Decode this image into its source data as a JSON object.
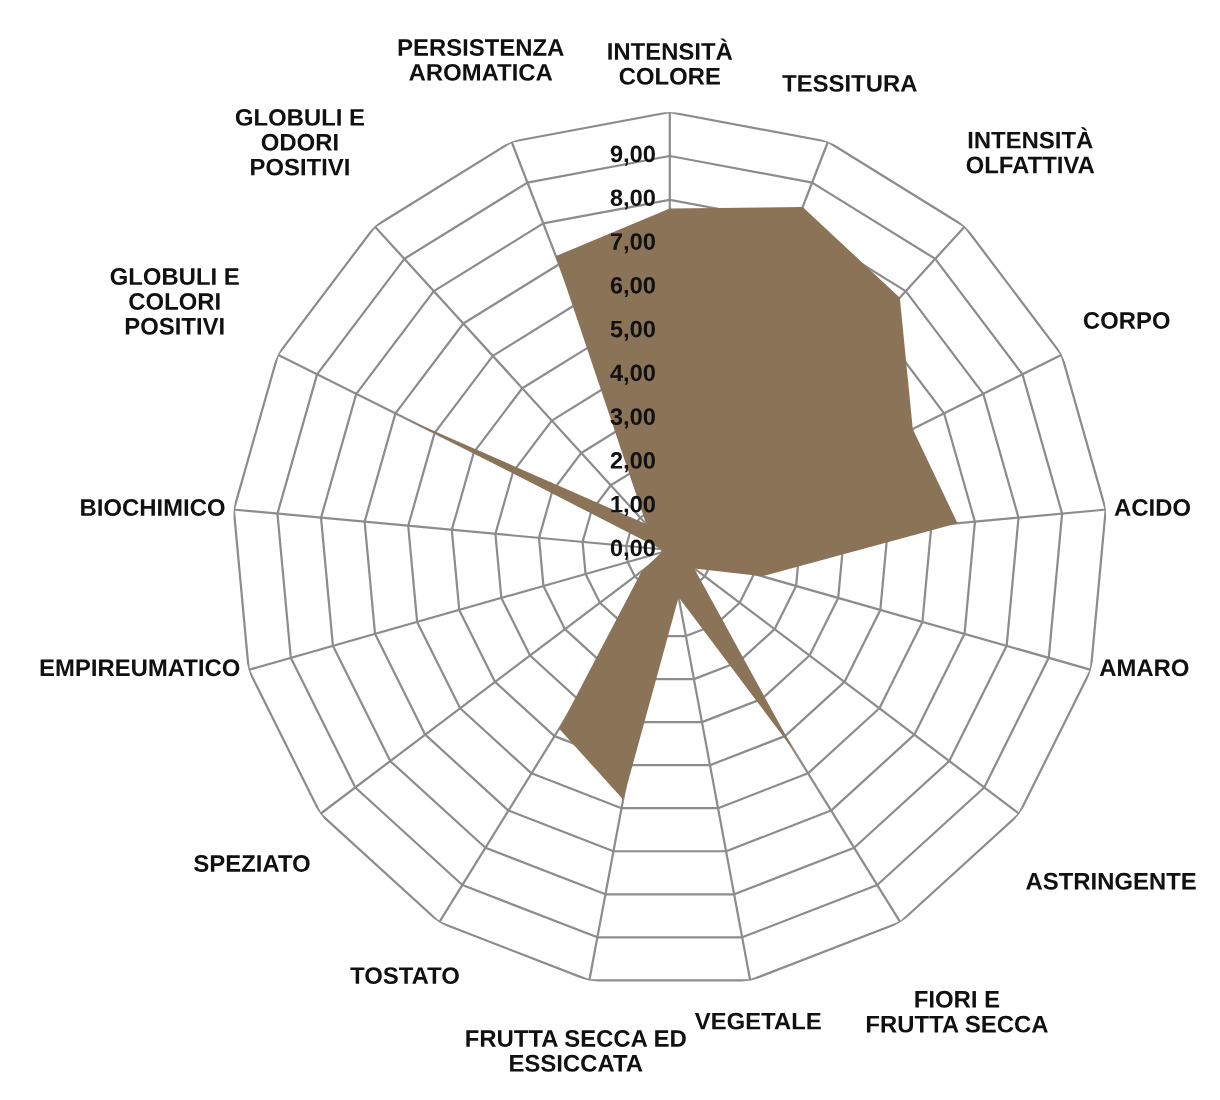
{
  "chart_data": {
    "type": "radar",
    "categories": [
      "INTENSITÀ\nCOLORE",
      "TESSITURA",
      "INTENSITÀ\nOLFATTIVA",
      "CORPO",
      "ACIDO",
      "AMARO",
      "ASTRINGENTE",
      "FIORI E\nFRUTTA SECCA",
      "VEGETALE",
      "FRUTTA SECCA ED\nESSICCATA",
      "TOSTATO",
      "SPEZIATO",
      "EMPIREUMATICO",
      "BIOCHIMICO",
      "GLOBULI E\nCOLORI\nPOSITIVI",
      "GLOBULI E\nODORI\nPOSITIVI",
      "PERSISTENZA\nAROMATICA"
    ],
    "series": [
      {
        "type": "area",
        "color": "#8b7358",
        "values": [
          7.8,
          8.4,
          7.8,
          6.2,
          6.6,
          2.2,
          0.7,
          5.4,
          1.1,
          5.8,
          4.8,
          0.8,
          0.2,
          0.2,
          6.7,
          0.8,
          7.2
        ]
      }
    ],
    "ylim": [
      0,
      10
    ],
    "yticks": [
      {
        "value": 0,
        "label": "0,00"
      },
      {
        "value": 1,
        "label": "1,00"
      },
      {
        "value": 2,
        "label": "2,00"
      },
      {
        "value": 3,
        "label": "3,00"
      },
      {
        "value": 4,
        "label": "4,00"
      },
      {
        "value": 5,
        "label": "5,00"
      },
      {
        "value": 6,
        "label": "6,00"
      },
      {
        "value": 7,
        "label": "7,00"
      },
      {
        "value": 8,
        "label": "8,00"
      },
      {
        "value": 9,
        "label": "9,00"
      }
    ],
    "grid": true
  }
}
